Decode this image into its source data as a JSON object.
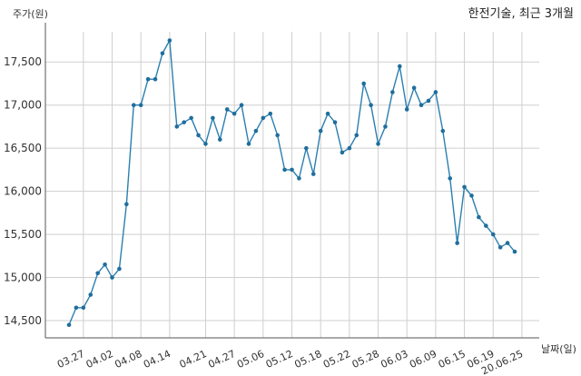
{
  "chart_data": {
    "type": "line",
    "title": "한전기술, 최근 3개월",
    "ylabel": "주가(원)",
    "xlabel": "날짜(일)",
    "ylim": [
      14300,
      17850
    ],
    "yticks": [
      14500,
      15000,
      15500,
      16000,
      16500,
      17000,
      17500
    ],
    "ytick_labels": [
      "14,500",
      "15,000",
      "15,500",
      "16,000",
      "16,500",
      "17,000",
      "17,500"
    ],
    "xtick_labels": [
      {
        "label": "03.27",
        "index": 2
      },
      {
        "label": "04.02",
        "index": 6
      },
      {
        "label": "04.08",
        "index": 10
      },
      {
        "label": "04.14",
        "index": 14
      },
      {
        "label": "04.21",
        "index": 19
      },
      {
        "label": "04.27",
        "index": 23
      },
      {
        "label": "05.06",
        "index": 27
      },
      {
        "label": "05.12",
        "index": 31
      },
      {
        "label": "05.18",
        "index": 35
      },
      {
        "label": "05.22",
        "index": 39
      },
      {
        "label": "05.28",
        "index": 43
      },
      {
        "label": "06.03",
        "index": 47
      },
      {
        "label": "06.09",
        "index": 51
      },
      {
        "label": "06.15",
        "index": 55
      },
      {
        "label": "06.19",
        "index": 59
      },
      {
        "label": "20.06.25",
        "index": 63
      }
    ],
    "grid": true,
    "colors": {
      "line": "#2a7fb0",
      "marker": "#1f6e9c",
      "grid": "#cfcfcf",
      "axis": "#555555"
    },
    "series": [
      {
        "values": [
          14450,
          14650,
          14650,
          14800,
          15050,
          15150,
          15000,
          15100,
          15850,
          17000,
          17000,
          17300,
          17300,
          17600,
          17750,
          16750,
          16800,
          16850,
          16650,
          16550,
          16850,
          16600,
          16950,
          16900,
          17000,
          16550,
          16700,
          16850,
          16900,
          16650,
          16250,
          16250,
          16150,
          16500,
          16200,
          16700,
          16900,
          16800,
          16450,
          16500,
          16650,
          17250,
          17000,
          16550,
          16750,
          17150,
          17450,
          16950,
          17200,
          17000,
          17050,
          17150,
          16700,
          16150,
          15400,
          16050,
          15950,
          15700,
          15600,
          15500,
          15350,
          15400,
          15300
        ]
      }
    ]
  }
}
